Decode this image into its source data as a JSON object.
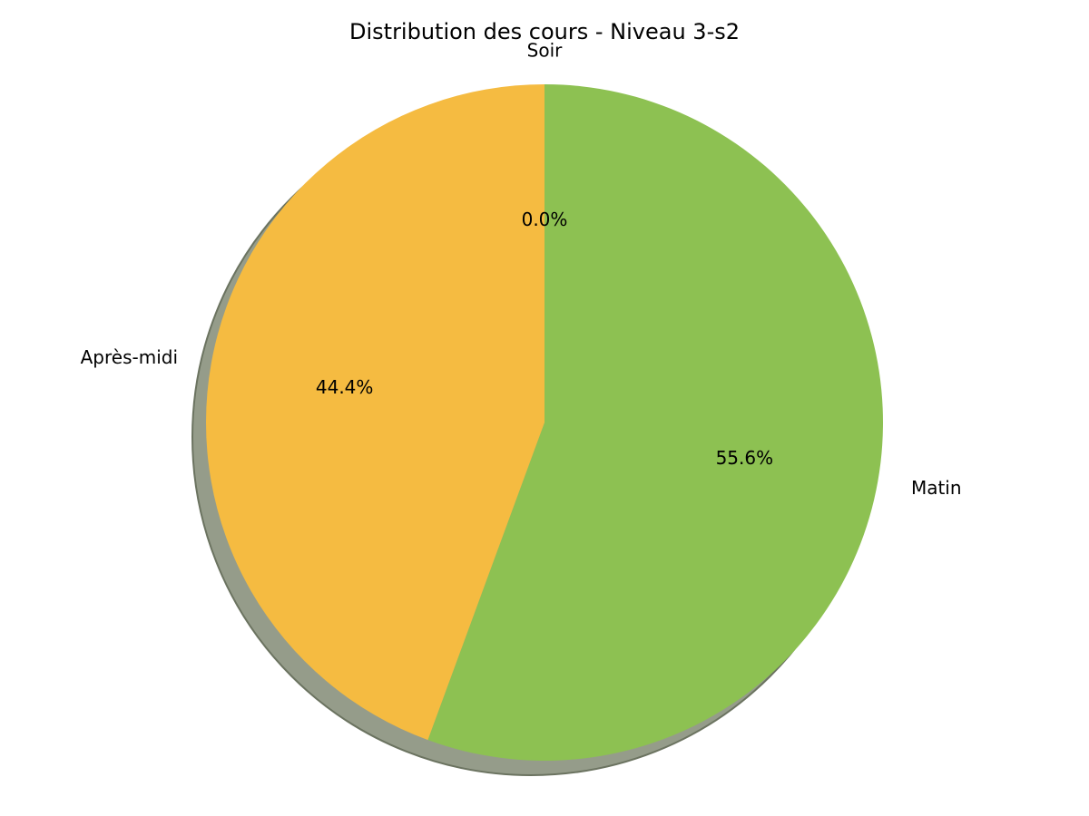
{
  "chart_data": {
    "type": "pie",
    "title": "Distribution des cours - Niveau 3-s2",
    "slices": [
      {
        "label": "Matin",
        "value": 55.6,
        "pct_label": "55.6%",
        "color": "#8dc152"
      },
      {
        "label": "Après-midi",
        "value": 44.4,
        "pct_label": "44.4%",
        "color": "#f5bb41"
      },
      {
        "label": "Soir",
        "value": 0.0,
        "pct_label": "0.0%",
        "color": "#e05a5a"
      }
    ],
    "start_angle_deg": 90,
    "direction": "clockwise",
    "shadow": true,
    "shadow_color": "#959c8a",
    "edge_color": "#6b7360"
  }
}
